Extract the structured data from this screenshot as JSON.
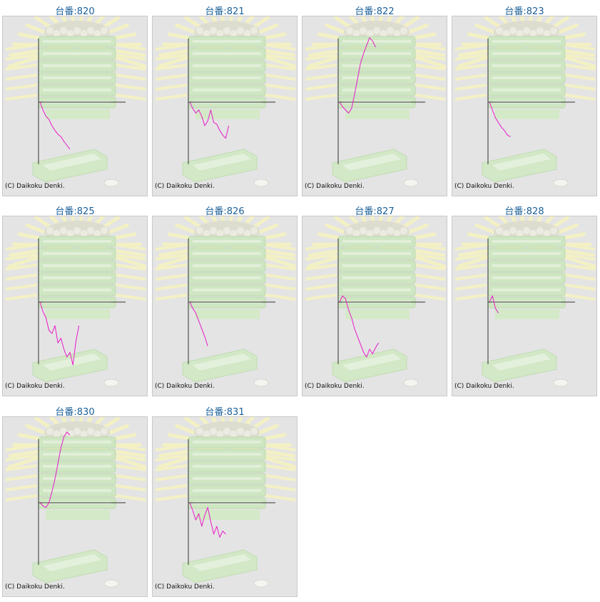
{
  "copyright": "(C) Daikoku Denki.",
  "colors": {
    "title": "#1a5f98",
    "line": "#e81bc8",
    "axis": "#333333",
    "panel_bg": "#e4e4e4"
  },
  "chart_data": [
    {
      "type": "line",
      "title": "台番:820",
      "x": [
        0,
        1,
        2,
        3,
        4,
        5,
        6,
        7,
        8,
        9,
        10
      ],
      "y": [
        0,
        -10,
        -18,
        -22,
        -30,
        -36,
        -41,
        -44,
        -50,
        -55,
        -60
      ]
    },
    {
      "type": "line",
      "title": "台番:821",
      "x": [
        0,
        1,
        2,
        3,
        4,
        5,
        6,
        7,
        8,
        9,
        10,
        11,
        12,
        13
      ],
      "y": [
        0,
        -8,
        -14,
        -10,
        -18,
        -30,
        -24,
        -10,
        -26,
        -28,
        -36,
        -42,
        -46,
        -30
      ]
    },
    {
      "type": "line",
      "title": "台番:822",
      "x": [
        0,
        1,
        2,
        3,
        4,
        5,
        6,
        7,
        8,
        9,
        10,
        11,
        12
      ],
      "y": [
        0,
        -6,
        -10,
        -14,
        -8,
        10,
        30,
        50,
        62,
        72,
        82,
        78,
        70
      ]
    },
    {
      "type": "line",
      "title": "台番:823",
      "x": [
        0,
        1,
        2,
        3,
        4,
        5,
        6,
        7
      ],
      "y": [
        0,
        -10,
        -20,
        -26,
        -32,
        -36,
        -42,
        -44
      ]
    },
    {
      "type": "line",
      "title": "台番:825",
      "x": [
        0,
        1,
        2,
        3,
        4,
        5,
        6,
        7,
        8,
        9,
        10,
        11,
        12,
        13
      ],
      "y": [
        0,
        -12,
        -20,
        -36,
        -40,
        -30,
        -52,
        -46,
        -60,
        -70,
        -64,
        -80,
        -50,
        -30
      ]
    },
    {
      "type": "line",
      "title": "台番:826",
      "x": [
        0,
        1,
        2,
        3,
        4,
        5,
        6
      ],
      "y": [
        0,
        -8,
        -14,
        -24,
        -34,
        -44,
        -56
      ]
    },
    {
      "type": "line",
      "title": "台番:827",
      "x": [
        0,
        1,
        2,
        3,
        4,
        5,
        6,
        7,
        8,
        9,
        10,
        11,
        12,
        13
      ],
      "y": [
        0,
        8,
        4,
        -10,
        -20,
        -34,
        -44,
        -54,
        -64,
        -70,
        -60,
        -66,
        -58,
        -52
      ]
    },
    {
      "type": "line",
      "title": "台番:828",
      "x": [
        0,
        1,
        2,
        3
      ],
      "y": [
        0,
        8,
        -8,
        -14
      ]
    },
    {
      "type": "line",
      "title": "台番:830",
      "x": [
        0,
        1,
        2,
        3,
        4,
        5,
        6,
        7,
        8,
        9,
        10
      ],
      "y": [
        0,
        -4,
        -6,
        0,
        14,
        30,
        50,
        70,
        84,
        90,
        86
      ]
    },
    {
      "type": "line",
      "title": "台番:831",
      "x": [
        0,
        1,
        2,
        3,
        4,
        5,
        6,
        7,
        8,
        9,
        10,
        11,
        12
      ],
      "y": [
        0,
        -10,
        -22,
        -14,
        -30,
        -16,
        -6,
        -24,
        -40,
        -30,
        -44,
        -36,
        -40
      ]
    }
  ]
}
